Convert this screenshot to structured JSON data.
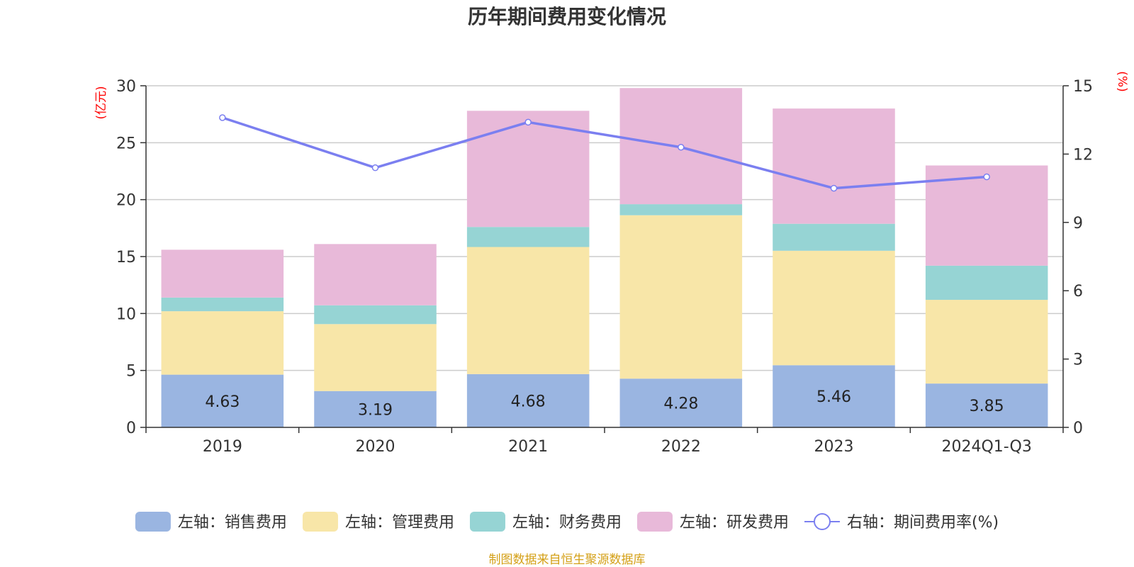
{
  "chart_data": {
    "type": "bar",
    "title": "历年期间费用变化情况",
    "categories": [
      "2019",
      "2020",
      "2021",
      "2022",
      "2023",
      "2024Q1-Q3"
    ],
    "left_axis": {
      "unit": "(亿元)",
      "ylim": [
        0,
        30
      ],
      "ticks": [
        0,
        5,
        10,
        15,
        20,
        25,
        30
      ]
    },
    "right_axis": {
      "unit": "(%)",
      "ylim": [
        0,
        15
      ],
      "ticks": [
        0,
        3,
        6,
        9,
        12,
        15
      ]
    },
    "series": [
      {
        "name": "左轴：销售费用",
        "axis": "left",
        "kind": "stacked-bar",
        "color": "#9ab5e1",
        "values": [
          4.63,
          3.19,
          4.68,
          4.28,
          5.46,
          3.85
        ],
        "labels": [
          "4.63",
          "3.19",
          "4.68",
          "4.28",
          "5.46",
          "3.85"
        ]
      },
      {
        "name": "左轴：管理费用",
        "axis": "left",
        "kind": "stacked-bar",
        "color": "#f8e6a8",
        "values": [
          5.57,
          5.88,
          11.16,
          14.35,
          10.05,
          7.35
        ]
      },
      {
        "name": "左轴：财务费用",
        "axis": "left",
        "kind": "stacked-bar",
        "color": "#96d4d4",
        "values": [
          1.2,
          1.65,
          1.76,
          0.97,
          2.37,
          3.0
        ]
      },
      {
        "name": "左轴：研发费用",
        "axis": "left",
        "kind": "stacked-bar",
        "color": "#e8b9d9",
        "values": [
          4.2,
          5.38,
          10.2,
          10.2,
          10.12,
          8.8
        ]
      },
      {
        "name": "右轴：期间费用率(%)",
        "axis": "right",
        "kind": "line",
        "color": "#7b7ff0",
        "values": [
          13.6,
          11.4,
          13.4,
          12.3,
          10.5,
          11.0
        ]
      }
    ],
    "grid": true,
    "legend_position": "bottom"
  },
  "source": "制图数据来自恒生聚源数据库"
}
